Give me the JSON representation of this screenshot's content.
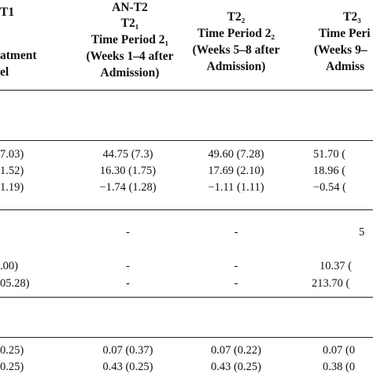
{
  "header": {
    "col0": {
      "l1": "T1",
      "l2": "atment",
      "l3": "el"
    },
    "col1": {
      "l1": "AN-T2",
      "l2": "T2₁",
      "l3": "Time Period 2₁",
      "l4": "(Weeks 1–4 after",
      "l5": "Admission)"
    },
    "col2": {
      "l1": "T2₂",
      "l2": "Time Period 2₂",
      "l3": "(Weeks 5–8 after",
      "l4": "Admission)"
    },
    "col3": {
      "l1": "T2₃",
      "l2": "Time Peri",
      "l3": "(Weeks 9–",
      "l4": "Admiss"
    }
  },
  "rows": [
    {
      "c0": "7.03)",
      "c1": "44.75 (7.3)",
      "c2": "49.60 (7.28)",
      "c3": "51.70 ("
    },
    {
      "c0": "1.52)",
      "c1": "16.30 (1.75)",
      "c2": "17.69 (2.10)",
      "c3": "18.96 ("
    },
    {
      "c0": "1.19)",
      "c1": "−1.74 (1.28)",
      "c2": "−1.11 (1.11)",
      "c3": "−0.54 ("
    },
    {
      "c0": "",
      "c1": "-",
      "c2": "-",
      "c3": "5"
    },
    {
      "c0": ".00)",
      "c1": "-",
      "c2": "-",
      "c3": "10.37 ("
    },
    {
      "c0": "05.28)",
      "c1": "-",
      "c2": "-",
      "c3": "213.70 ("
    },
    {
      "c0": "0.25)",
      "c1": "0.07 (0.37)",
      "c2": "0.07 (0.22)",
      "c3": "0.07 (0"
    },
    {
      "c0": "0.25)",
      "c1": "0.43 (0.25)",
      "c2": "0.43 (0.25)",
      "c3": "0.38 (0"
    }
  ]
}
